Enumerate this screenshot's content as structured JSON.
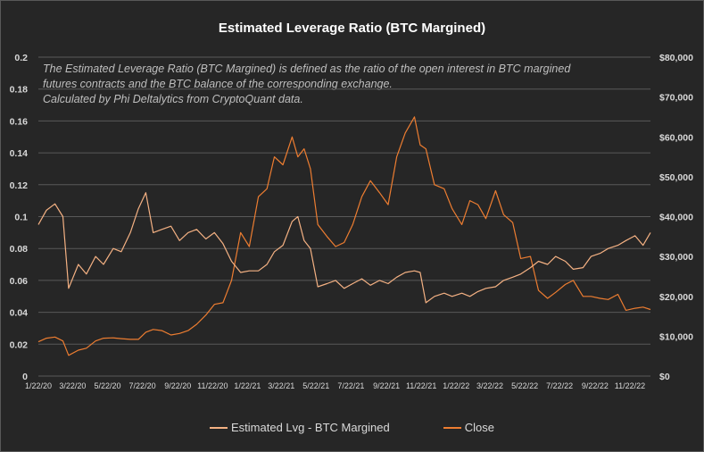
{
  "chart_data": {
    "type": "line",
    "title": "Estimated Leverage Ratio (BTC Margined)",
    "annotation": [
      "The Estimated Leverage Ratio (BTC Margined) is defined as the ratio of the open interest in BTC margined",
      "futures contracts and the BTC balance of the corresponding exchange.",
      "Calculated by Phi Deltalytics from CryptoQuant data."
    ],
    "y_left": {
      "range": [
        0,
        0.2
      ],
      "ticks": [
        "0",
        "0.02",
        "0.04",
        "0.06",
        "0.08",
        "0.1",
        "0.12",
        "0.14",
        "0.16",
        "0.18",
        "0.2"
      ]
    },
    "y_right": {
      "range": [
        0,
        80000
      ],
      "ticks": [
        "$0",
        "$10,000",
        "$20,000",
        "$30,000",
        "$40,000",
        "$50,000",
        "$60,000",
        "$70,000",
        "$80,000"
      ]
    },
    "x_ticks": [
      "1/22/20",
      "3/22/20",
      "5/22/20",
      "7/22/20",
      "9/22/20",
      "11/22/20",
      "1/22/21",
      "3/22/21",
      "5/22/21",
      "7/22/21",
      "9/22/21",
      "11/22/21",
      "1/22/22",
      "3/22/22",
      "5/22/22",
      "7/22/22",
      "9/22/22",
      "11/22/22"
    ],
    "grid": true,
    "legend_position": "bottom",
    "series": [
      {
        "name": "Estimated Lvg - BTC Margined",
        "axis": "left",
        "color": "#f4b183",
        "x": [
          "1/22/20",
          "2/5/20",
          "2/20/20",
          "3/5/20",
          "3/15/20",
          "4/1/20",
          "4/15/20",
          "5/1/20",
          "5/15/20",
          "6/1/20",
          "6/15/20",
          "7/1/20",
          "7/15/20",
          "7/28/20",
          "8/10/20",
          "8/25/20",
          "9/10/20",
          "9/25/20",
          "10/10/20",
          "10/25/20",
          "11/10/20",
          "11/25/20",
          "12/10/20",
          "12/25/20",
          "1/10/21",
          "1/25/21",
          "2/10/21",
          "2/25/21",
          "3/10/21",
          "3/25/21",
          "4/10/21",
          "4/20/21",
          "5/1/21",
          "5/12/21",
          "5/25/21",
          "6/10/21",
          "6/25/21",
          "7/10/21",
          "7/25/21",
          "8/10/21",
          "8/25/21",
          "9/10/21",
          "9/25/21",
          "10/10/21",
          "10/25/21",
          "11/10/21",
          "11/20/21",
          "11/30/21",
          "12/15/21",
          "1/1/22",
          "1/15/22",
          "2/1/22",
          "2/15/22",
          "3/1/22",
          "3/15/22",
          "4/1/22",
          "4/15/22",
          "5/1/22",
          "5/15/22",
          "6/1/22",
          "6/15/22",
          "7/1/22",
          "7/15/22",
          "8/1/22",
          "8/15/22",
          "9/1/22",
          "9/15/22",
          "10/1/22",
          "10/15/22",
          "11/1/22",
          "11/15/22",
          "12/1/22",
          "12/15/22",
          "12/28/22"
        ],
        "y": [
          0.095,
          0.104,
          0.108,
          0.1,
          0.055,
          0.07,
          0.064,
          0.075,
          0.07,
          0.08,
          0.078,
          0.09,
          0.105,
          0.115,
          0.09,
          0.092,
          0.094,
          0.085,
          0.09,
          0.092,
          0.086,
          0.09,
          0.083,
          0.072,
          0.065,
          0.066,
          0.066,
          0.07,
          0.078,
          0.082,
          0.097,
          0.1,
          0.085,
          0.08,
          0.056,
          0.058,
          0.06,
          0.055,
          0.058,
          0.061,
          0.057,
          0.06,
          0.058,
          0.062,
          0.065,
          0.066,
          0.065,
          0.046,
          0.05,
          0.052,
          0.05,
          0.052,
          0.05,
          0.053,
          0.055,
          0.056,
          0.06,
          0.062,
          0.064,
          0.068,
          0.072,
          0.07,
          0.075,
          0.072,
          0.067,
          0.068,
          0.075,
          0.077,
          0.08,
          0.082,
          0.085,
          0.088,
          0.082,
          0.09
        ]
      },
      {
        "name": "Close",
        "axis": "right",
        "color": "#ed7d31",
        "x": [
          "1/22/20",
          "2/5/20",
          "2/20/20",
          "3/5/20",
          "3/15/20",
          "4/1/20",
          "4/15/20",
          "5/1/20",
          "5/15/20",
          "6/1/20",
          "6/15/20",
          "7/1/20",
          "7/15/20",
          "7/28/20",
          "8/10/20",
          "8/25/20",
          "9/10/20",
          "9/25/20",
          "10/10/20",
          "10/25/20",
          "11/10/20",
          "11/25/20",
          "12/10/20",
          "12/25/20",
          "1/10/21",
          "1/25/21",
          "2/10/21",
          "2/25/21",
          "3/10/21",
          "3/25/21",
          "4/10/21",
          "4/20/21",
          "5/1/21",
          "5/12/21",
          "5/25/21",
          "6/10/21",
          "6/25/21",
          "7/10/21",
          "7/25/21",
          "8/10/21",
          "8/25/21",
          "9/10/21",
          "9/25/21",
          "10/10/21",
          "10/25/21",
          "11/10/21",
          "11/20/21",
          "11/30/21",
          "12/15/21",
          "1/1/22",
          "1/15/22",
          "2/1/22",
          "2/15/22",
          "3/1/22",
          "3/15/22",
          "4/1/22",
          "4/15/22",
          "5/1/22",
          "5/15/22",
          "6/1/22",
          "6/15/22",
          "7/1/22",
          "7/15/22",
          "8/1/22",
          "8/15/22",
          "9/1/22",
          "9/15/22",
          "10/1/22",
          "10/15/22",
          "11/1/22",
          "11/15/22",
          "12/1/22",
          "12/15/22",
          "12/28/22"
        ],
        "y": [
          8600,
          9500,
          9800,
          8800,
          5200,
          6500,
          7000,
          8800,
          9500,
          9600,
          9400,
          9200,
          9200,
          11000,
          11700,
          11400,
          10300,
          10700,
          11400,
          13000,
          15300,
          18000,
          18400,
          24000,
          36000,
          32500,
          45000,
          47000,
          55000,
          53000,
          60000,
          55000,
          57000,
          52000,
          38000,
          35000,
          32500,
          33500,
          38000,
          45000,
          49000,
          46000,
          43000,
          55000,
          61000,
          65000,
          58000,
          57000,
          48000,
          47000,
          42000,
          38000,
          44000,
          43000,
          39500,
          46500,
          40500,
          38500,
          29500,
          30000,
          21500,
          19500,
          21000,
          23000,
          24000,
          20000,
          20000,
          19500,
          19200,
          20500,
          16500,
          17000,
          17300,
          16700
        ]
      }
    ]
  }
}
